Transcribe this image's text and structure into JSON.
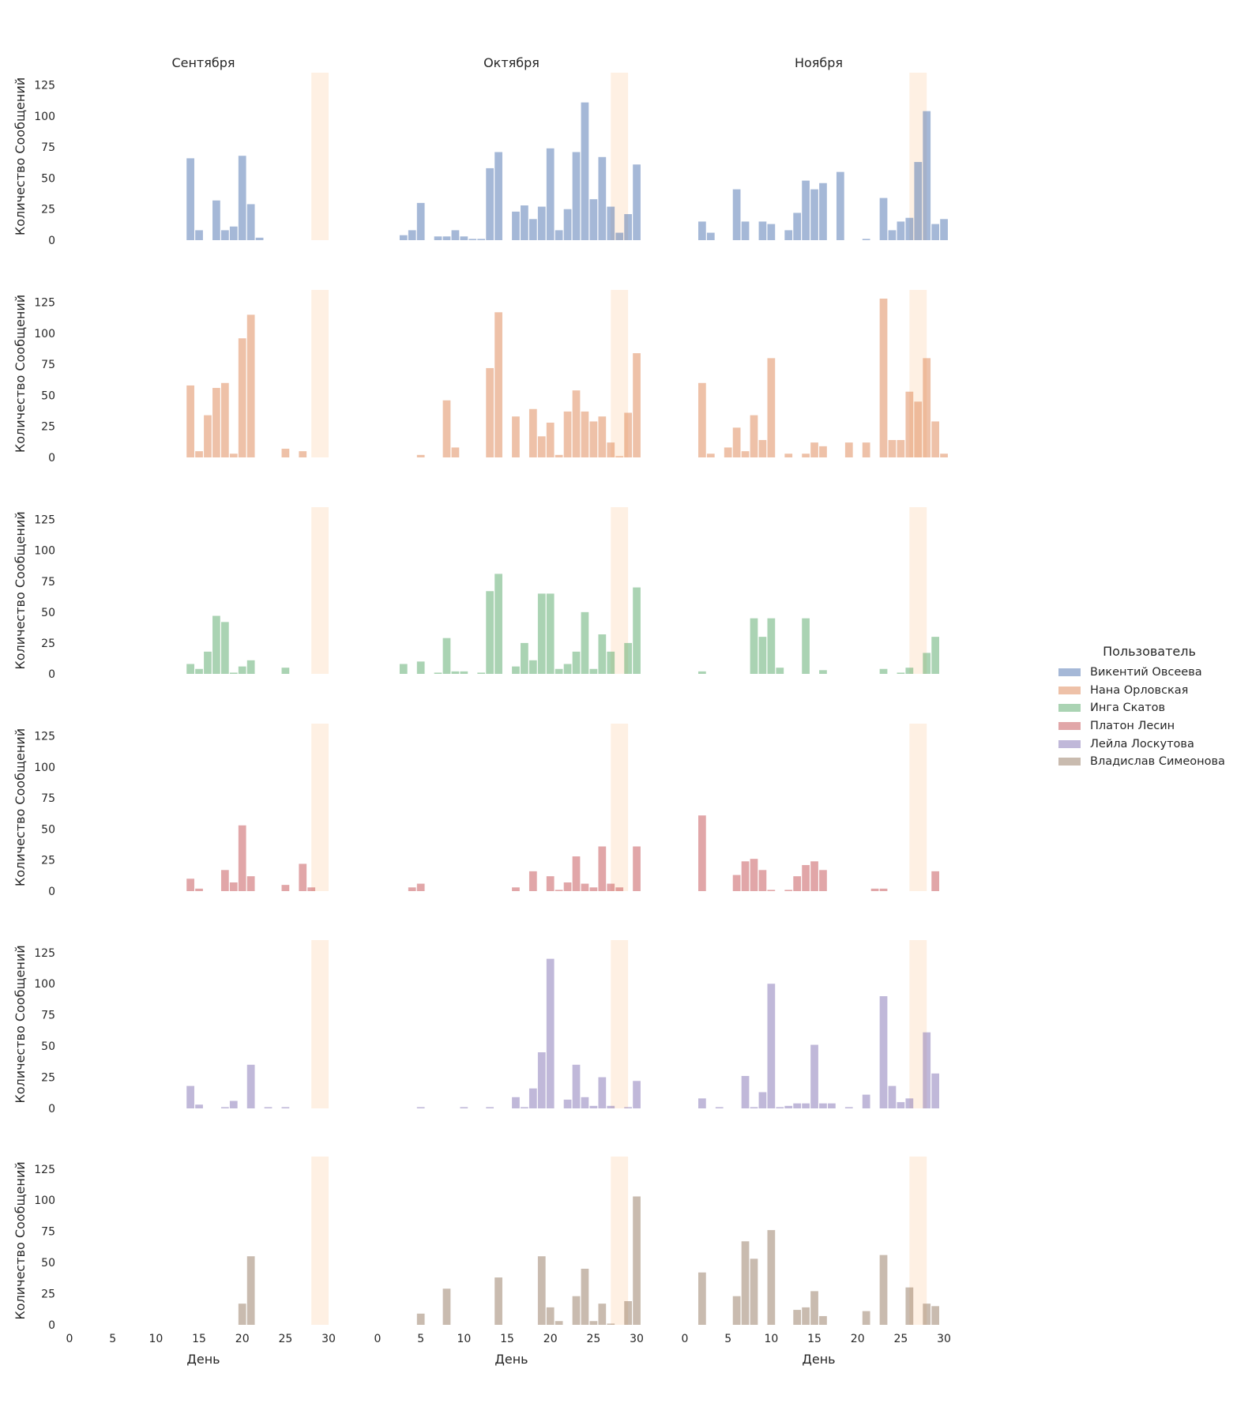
{
  "chart_data": {
    "type": "bar",
    "facet_row": "user",
    "facet_col": "month",
    "months": [
      "Сентября",
      "Октября",
      "Ноября"
    ],
    "xlabel": "День",
    "ylabel": "Количество Сообщений",
    "xlim": [
      0,
      31
    ],
    "ylim": [
      0,
      135
    ],
    "xticks": [
      0,
      5,
      10,
      15,
      20,
      25,
      30
    ],
    "yticks": [
      0,
      25,
      50,
      75,
      100,
      125
    ],
    "grid": false,
    "legend_title": "Пользователь",
    "legend_position": "right",
    "highlight_color": "#fdebd9",
    "highlight_ranges": [
      [
        28,
        30
      ],
      [
        27,
        29
      ],
      [
        26,
        28
      ]
    ],
    "series": [
      {
        "name": "Викентий Овсеева",
        "color": "#4c72b0",
        "months": [
          {
            "days": [
              14,
              15,
              17,
              18,
              19,
              20,
              21,
              22
            ],
            "values": [
              66,
              8,
              32,
              8,
              11,
              68,
              29,
              2
            ]
          },
          {
            "days": [
              3,
              4,
              5,
              7,
              8,
              9,
              10,
              11,
              12,
              13,
              14,
              16,
              17,
              18,
              19,
              20,
              21,
              22,
              23,
              24,
              25,
              26,
              27,
              28,
              29,
              30
            ],
            "values": [
              4,
              8,
              30,
              3,
              3,
              8,
              3,
              1,
              1,
              58,
              71,
              23,
              28,
              17,
              27,
              74,
              8,
              25,
              71,
              111,
              33,
              67,
              27,
              6,
              21,
              61
            ]
          },
          {
            "days": [
              2,
              3,
              6,
              7,
              9,
              10,
              12,
              13,
              14,
              15,
              16,
              18,
              21,
              23,
              24,
              25,
              26,
              27,
              28,
              29,
              30
            ],
            "values": [
              15,
              6,
              41,
              15,
              15,
              13,
              8,
              22,
              48,
              41,
              46,
              55,
              1,
              34,
              8,
              15,
              18,
              63,
              104,
              13,
              17
            ]
          }
        ]
      },
      {
        "name": "Нана Орловская",
        "color": "#dd8452",
        "months": [
          {
            "days": [
              14,
              15,
              16,
              17,
              18,
              19,
              20,
              21,
              25,
              27
            ],
            "values": [
              58,
              5,
              34,
              56,
              60,
              3,
              96,
              115,
              7,
              5
            ]
          },
          {
            "days": [
              5,
              8,
              9,
              13,
              14,
              16,
              18,
              19,
              20,
              21,
              22,
              23,
              24,
              25,
              26,
              27,
              28,
              29,
              30
            ],
            "values": [
              2,
              46,
              8,
              72,
              117,
              33,
              39,
              17,
              28,
              2,
              37,
              54,
              37,
              29,
              33,
              12,
              1,
              36,
              84
            ]
          },
          {
            "days": [
              2,
              3,
              5,
              6,
              7,
              8,
              9,
              10,
              12,
              14,
              15,
              16,
              19,
              21,
              23,
              24,
              25,
              26,
              27,
              28,
              29,
              30
            ],
            "values": [
              60,
              3,
              8,
              24,
              5,
              34,
              14,
              80,
              3,
              3,
              12,
              9,
              12,
              12,
              128,
              14,
              14,
              53,
              45,
              80,
              29,
              3
            ]
          }
        ]
      },
      {
        "name": "Инга Скатов",
        "color": "#55a868",
        "months": [
          {
            "days": [
              14,
              15,
              16,
              17,
              18,
              19,
              20,
              21,
              25
            ],
            "values": [
              8,
              4,
              18,
              47,
              42,
              1,
              6,
              11,
              5
            ]
          },
          {
            "days": [
              3,
              5,
              7,
              8,
              9,
              10,
              12,
              13,
              14,
              16,
              17,
              18,
              19,
              20,
              21,
              22,
              23,
              24,
              25,
              26,
              27,
              29,
              30
            ],
            "values": [
              8,
              10,
              1,
              29,
              2,
              2,
              1,
              67,
              81,
              6,
              25,
              11,
              65,
              65,
              4,
              8,
              18,
              50,
              4,
              32,
              18,
              25,
              70
            ]
          },
          {
            "days": [
              2,
              8,
              9,
              10,
              11,
              14,
              16,
              23,
              25,
              26,
              28,
              29
            ],
            "values": [
              2,
              45,
              30,
              45,
              5,
              45,
              3,
              4,
              1,
              5,
              17,
              30
            ]
          }
        ]
      },
      {
        "name": "Платон Лесин",
        "color": "#c44e52",
        "months": [
          {
            "days": [
              14,
              15,
              18,
              19,
              20,
              21,
              25,
              27,
              28
            ],
            "values": [
              10,
              2,
              17,
              7,
              53,
              12,
              5,
              22,
              3
            ]
          },
          {
            "days": [
              4,
              5,
              16,
              18,
              20,
              21,
              22,
              23,
              24,
              25,
              26,
              27,
              28,
              30
            ],
            "values": [
              3,
              6,
              3,
              16,
              12,
              1,
              7,
              28,
              6,
              3,
              36,
              6,
              3,
              36
            ]
          },
          {
            "days": [
              2,
              6,
              7,
              8,
              9,
              10,
              12,
              13,
              14,
              15,
              16,
              22,
              23,
              29
            ],
            "values": [
              61,
              13,
              24,
              26,
              17,
              1,
              1,
              12,
              21,
              24,
              17,
              2,
              2,
              16
            ]
          }
        ]
      },
      {
        "name": "Лейла Лоскутова",
        "color": "#8172b3",
        "months": [
          {
            "days": [
              14,
              15,
              18,
              19,
              21,
              23,
              25
            ],
            "values": [
              18,
              3,
              1,
              6,
              35,
              1,
              1
            ]
          },
          {
            "days": [
              5,
              10,
              13,
              16,
              17,
              18,
              19,
              20,
              22,
              23,
              24,
              25,
              26,
              27,
              29,
              30
            ],
            "values": [
              1,
              1,
              1,
              9,
              1,
              16,
              45,
              120,
              7,
              35,
              9,
              2,
              25,
              2,
              1,
              22
            ]
          },
          {
            "days": [
              2,
              4,
              7,
              8,
              9,
              10,
              11,
              12,
              13,
              14,
              15,
              16,
              17,
              19,
              21,
              23,
              24,
              25,
              26,
              28,
              29
            ],
            "values": [
              8,
              1,
              26,
              1,
              13,
              100,
              1,
              2,
              4,
              4,
              51,
              4,
              4,
              1,
              11,
              90,
              18,
              5,
              8,
              61,
              28
            ]
          }
        ]
      },
      {
        "name": "Владислав Симеонова",
        "color": "#937860",
        "months": [
          {
            "days": [
              20,
              21
            ],
            "values": [
              17,
              55
            ]
          },
          {
            "days": [
              5,
              8,
              14,
              19,
              20,
              21,
              23,
              24,
              25,
              26,
              27,
              29,
              30
            ],
            "values": [
              9,
              29,
              38,
              55,
              14,
              3,
              23,
              45,
              3,
              17,
              1,
              19,
              103
            ]
          },
          {
            "days": [
              2,
              6,
              7,
              8,
              10,
              13,
              14,
              15,
              16,
              21,
              23,
              26,
              28,
              29
            ],
            "values": [
              42,
              23,
              67,
              53,
              76,
              12,
              14,
              27,
              7,
              11,
              56,
              30,
              17,
              15
            ]
          }
        ]
      }
    ]
  }
}
